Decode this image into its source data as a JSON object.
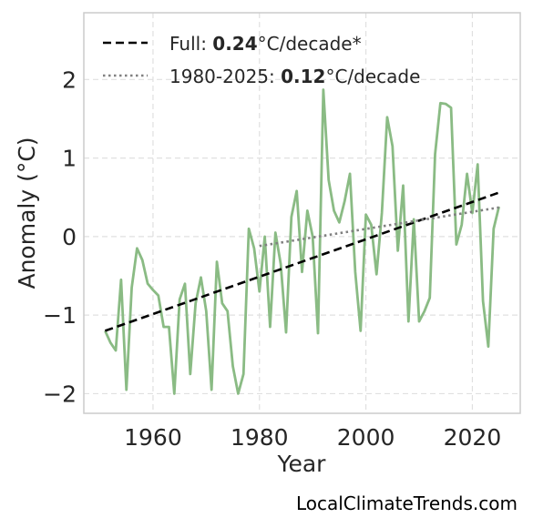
{
  "chart_data": {
    "type": "line",
    "xlabel": "Year",
    "ylabel": "Anomaly (°C)",
    "xlim": [
      1947,
      2029
    ],
    "ylim": [
      -2.25,
      2.85
    ],
    "xticks": [
      1960,
      1980,
      2000,
      2020
    ],
    "yticks": [
      -2,
      -1,
      0,
      1,
      2
    ],
    "ytick_labels": [
      "−2",
      "−1",
      "0",
      "1",
      "2"
    ],
    "grid": true,
    "legend_position": "top-left",
    "series": [
      {
        "kind": "data",
        "color": "#8abb84",
        "x": [
          1951,
          1952,
          1953,
          1954,
          1955,
          1956,
          1957,
          1958,
          1959,
          1960,
          1961,
          1962,
          1963,
          1964,
          1965,
          1966,
          1967,
          1968,
          1969,
          1970,
          1971,
          1972,
          1973,
          1974,
          1975,
          1976,
          1977,
          1978,
          1979,
          1980,
          1981,
          1982,
          1983,
          1984,
          1985,
          1986,
          1987,
          1988,
          1989,
          1990,
          1991,
          1992,
          1993,
          1994,
          1995,
          1996,
          1997,
          1998,
          1999,
          2000,
          2001,
          2002,
          2003,
          2004,
          2005,
          2006,
          2007,
          2008,
          2009,
          2010,
          2011,
          2012,
          2013,
          2014,
          2015,
          2016,
          2017,
          2018,
          2019,
          2020,
          2021,
          2022,
          2023,
          2024,
          2025
        ],
        "y": [
          -1.2,
          -1.35,
          -1.45,
          -0.55,
          -1.95,
          -0.65,
          -0.15,
          -0.3,
          -0.6,
          -0.68,
          -0.75,
          -1.15,
          -1.15,
          -2.0,
          -0.8,
          -0.6,
          -1.75,
          -0.85,
          -0.52,
          -0.95,
          -1.95,
          -0.32,
          -0.85,
          -0.95,
          -1.65,
          -2.0,
          -1.75,
          0.1,
          -0.15,
          -0.7,
          0.0,
          -1.15,
          0.05,
          -0.35,
          -1.22,
          0.25,
          0.58,
          -0.45,
          0.33,
          0.0,
          -1.23,
          1.87,
          0.72,
          0.33,
          0.18,
          0.45,
          0.8,
          -0.45,
          -1.2,
          0.28,
          0.15,
          -0.48,
          0.3,
          1.52,
          1.15,
          -0.18,
          0.65,
          -1.08,
          0.22,
          -1.08,
          -0.95,
          -0.78,
          1.05,
          1.7,
          1.69,
          1.64,
          -0.1,
          0.15,
          0.8,
          0.3,
          0.92,
          -0.82,
          -1.4,
          0.1,
          0.38
        ]
      },
      {
        "kind": "trend",
        "name": "Full",
        "color": "#000000",
        "dash": "dashed",
        "x": [
          1951,
          2025
        ],
        "y": [
          -1.2,
          0.56
        ]
      },
      {
        "kind": "trend",
        "name": "1980-2025",
        "color": "#808080",
        "dash": "dotted",
        "x": [
          1980,
          2025
        ],
        "y": [
          -0.12,
          0.37
        ]
      }
    ]
  },
  "legend": {
    "full": {
      "prefix": "Full: ",
      "value": "0.24",
      "suffix": "°C/decade*"
    },
    "recent": {
      "prefix": "1980-2025: ",
      "value": "0.12",
      "suffix": "°C/decade"
    }
  },
  "watermark": "LocalClimateTrends.com"
}
